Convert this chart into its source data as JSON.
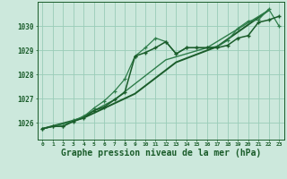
{
  "bg_color": "#cce8dc",
  "grid_color": "#99ccb8",
  "line_color_dark": "#1a5c2a",
  "line_color_mid": "#2e7d4a",
  "xlabel": "Graphe pression niveau de la mer (hPa)",
  "xlabel_fontsize": 7.0,
  "ylabel_ticks": [
    1026,
    1027,
    1028,
    1029,
    1030
  ],
  "xlim": [
    -0.5,
    23.5
  ],
  "ylim": [
    1025.3,
    1031.0
  ],
  "xticks": [
    0,
    1,
    2,
    3,
    4,
    5,
    6,
    7,
    8,
    9,
    10,
    11,
    12,
    13,
    14,
    15,
    16,
    17,
    18,
    19,
    20,
    21,
    22,
    23
  ],
  "series1_x": [
    0,
    1,
    2,
    3,
    4,
    5,
    6,
    7,
    8,
    9,
    10,
    11,
    12,
    13,
    14,
    15,
    16,
    17,
    18,
    19,
    20,
    21,
    22,
    23
  ],
  "series1_y": [
    1025.75,
    1025.85,
    1025.85,
    1026.05,
    1026.2,
    1026.5,
    1026.65,
    1026.95,
    1027.25,
    1028.75,
    1028.9,
    1029.1,
    1029.35,
    1028.85,
    1029.1,
    1029.1,
    1029.1,
    1029.1,
    1029.2,
    1029.5,
    1029.6,
    1030.15,
    1030.25,
    1030.4
  ],
  "series2_x": [
    0,
    1,
    2,
    3,
    4,
    5,
    6,
    7,
    8,
    9,
    10,
    11,
    12,
    13,
    14,
    15,
    16,
    17,
    18,
    19,
    20,
    21,
    22,
    23
  ],
  "series2_y": [
    1025.75,
    1025.85,
    1025.85,
    1026.1,
    1026.25,
    1026.6,
    1026.9,
    1027.3,
    1027.8,
    1028.75,
    1029.1,
    1029.5,
    1029.35,
    1028.85,
    1029.1,
    1029.1,
    1029.1,
    1029.15,
    1029.4,
    1029.9,
    1030.2,
    1030.25,
    1030.7,
    1030.0
  ],
  "series3_x": [
    0,
    4,
    9,
    13,
    17,
    22
  ],
  "series3_y": [
    1025.75,
    1026.2,
    1027.2,
    1028.5,
    1029.15,
    1030.65
  ],
  "series4_x": [
    0,
    3,
    7,
    12,
    16,
    22
  ],
  "series4_y": [
    1025.75,
    1026.05,
    1026.95,
    1028.6,
    1029.1,
    1030.65
  ]
}
